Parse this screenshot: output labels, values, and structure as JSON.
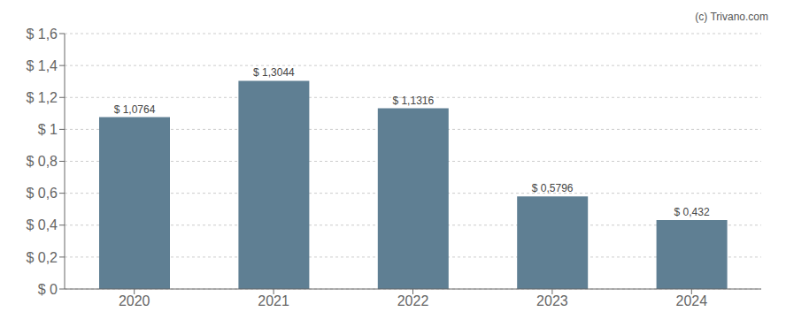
{
  "chart_data": {
    "type": "bar",
    "categories": [
      "2020",
      "2021",
      "2022",
      "2023",
      "2024"
    ],
    "values": [
      1.0764,
      1.3044,
      1.1316,
      0.5796,
      0.432
    ],
    "value_labels": [
      "$ 1,0764",
      "$ 1,3044",
      "$ 1,1316",
      "$ 0,5796",
      "$ 0,432"
    ],
    "data_labels": true,
    "color": "#5f7f93",
    "ylim": [
      0,
      1.6
    ],
    "yticks": [
      {
        "value": 0,
        "label": "$ 0"
      },
      {
        "value": 0.2,
        "label": "$ 0,2"
      },
      {
        "value": 0.4,
        "label": "$ 0,4"
      },
      {
        "value": 0.6,
        "label": "$ 0,6"
      },
      {
        "value": 0.8,
        "label": "$ 0,8"
      },
      {
        "value": 1.0,
        "label": "$ 1"
      },
      {
        "value": 1.2,
        "label": "$ 1,2"
      },
      {
        "value": 1.4,
        "label": "$ 1,4"
      },
      {
        "value": 1.6,
        "label": "$ 1,6"
      }
    ],
    "grid": true,
    "annotations": [
      "(c) Trivano.com"
    ]
  }
}
